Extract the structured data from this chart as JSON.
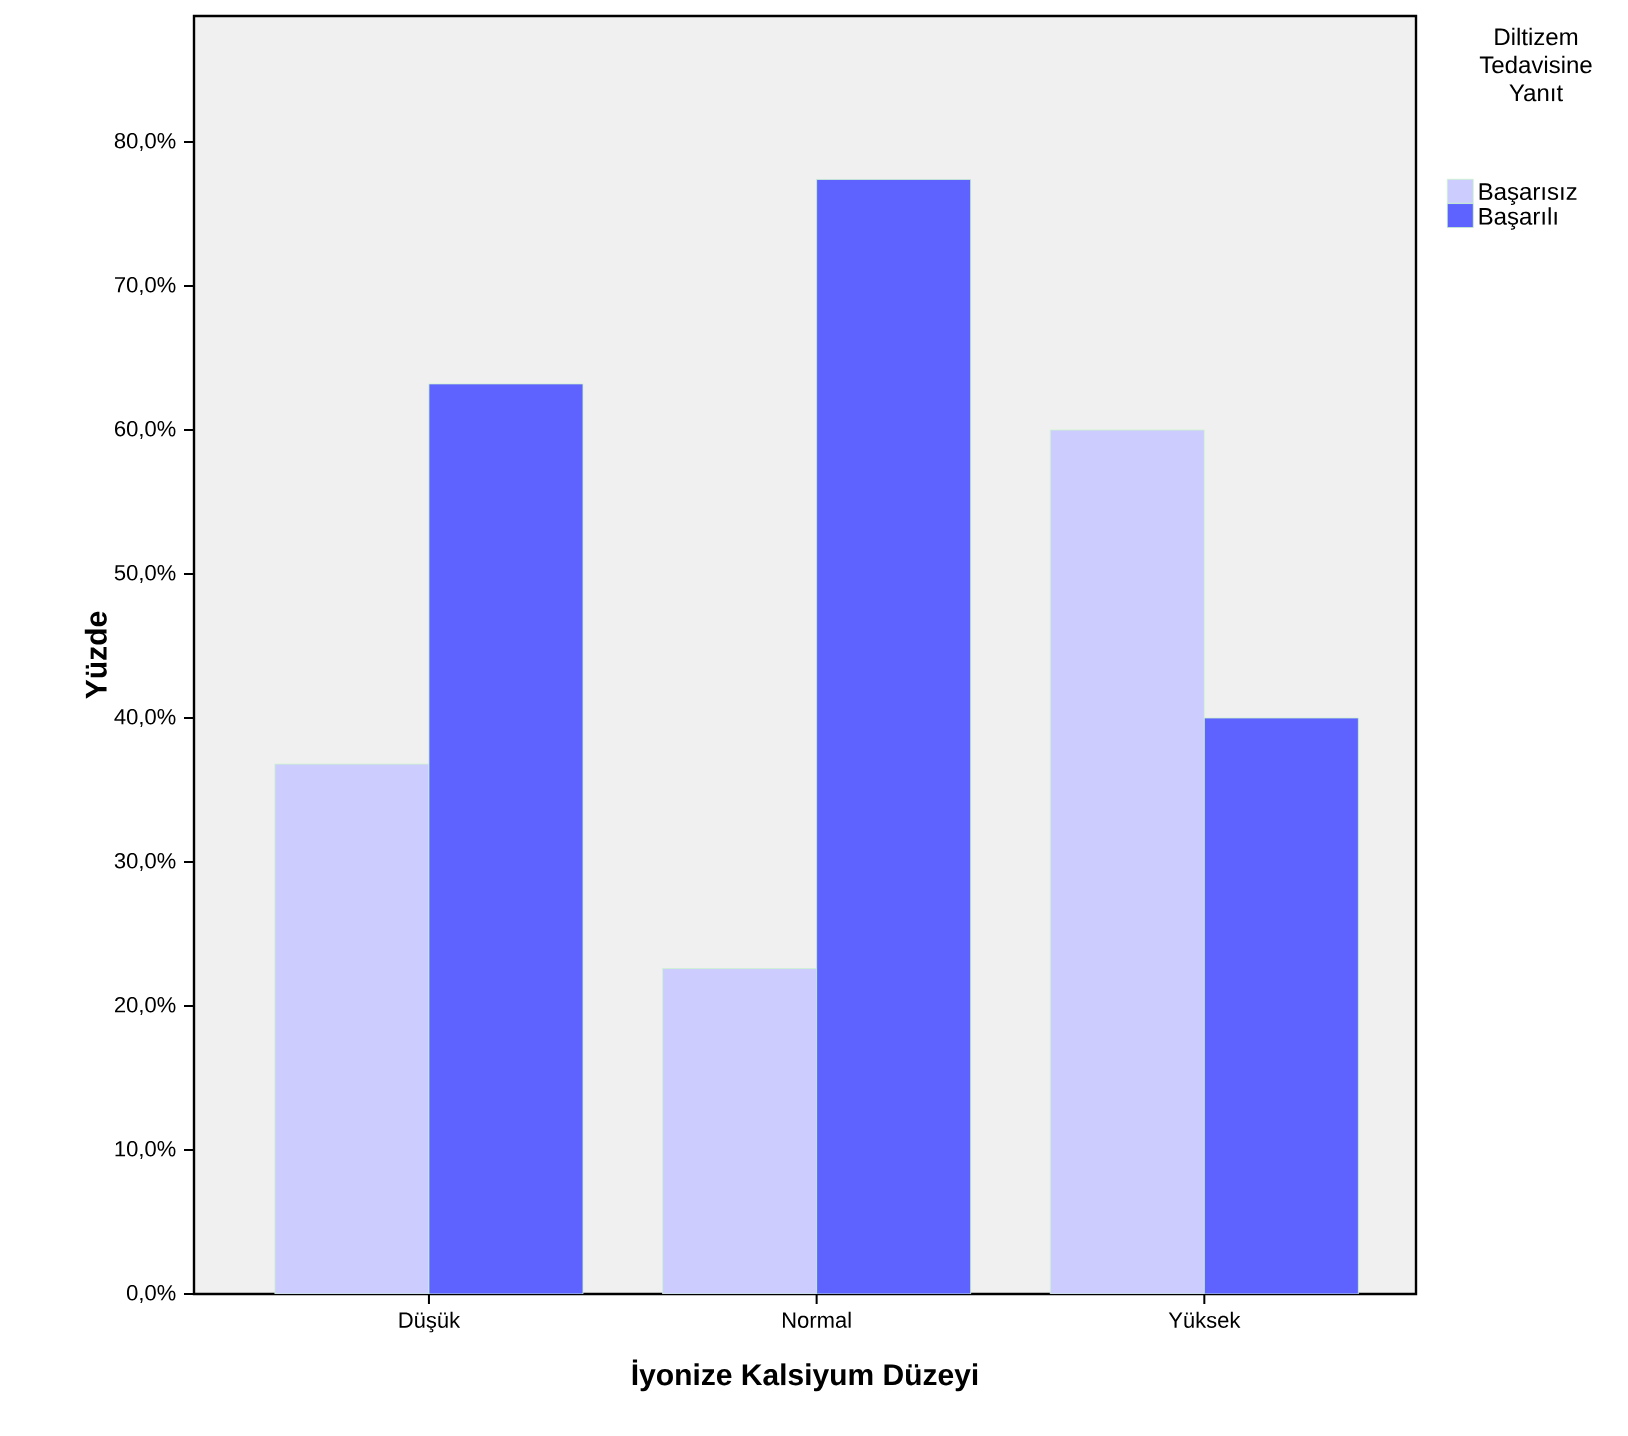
{
  "chart_data": {
    "type": "bar",
    "xlabel": "İyonize Kalsiyum Düzeyi",
    "ylabel": "Yüzde",
    "legend_title": "Diltizem Tedavisine Yanıt",
    "categories": [
      "Düşük",
      "Normal",
      "Yüksek"
    ],
    "series": [
      {
        "name": "Başarısız",
        "color": "#ccccff",
        "values": [
          36.8,
          22.6,
          60.0
        ]
      },
      {
        "name": "Başarılı",
        "color": "#5e62ff",
        "values": [
          63.2,
          77.4,
          40.0
        ]
      }
    ],
    "ylim": [
      0,
      88.75
    ],
    "yticks": [
      {
        "value": 0,
        "label": "0,0%"
      },
      {
        "value": 10,
        "label": "10,0%"
      },
      {
        "value": 20,
        "label": "20,0%"
      },
      {
        "value": 30,
        "label": "30,0%"
      },
      {
        "value": 40,
        "label": "40,0%"
      },
      {
        "value": 50,
        "label": "50,0%"
      },
      {
        "value": 60,
        "label": "60,0%"
      },
      {
        "value": 70,
        "label": "70,0%"
      },
      {
        "value": 80,
        "label": "80,0%"
      }
    ],
    "grid": false,
    "legend": "right"
  }
}
